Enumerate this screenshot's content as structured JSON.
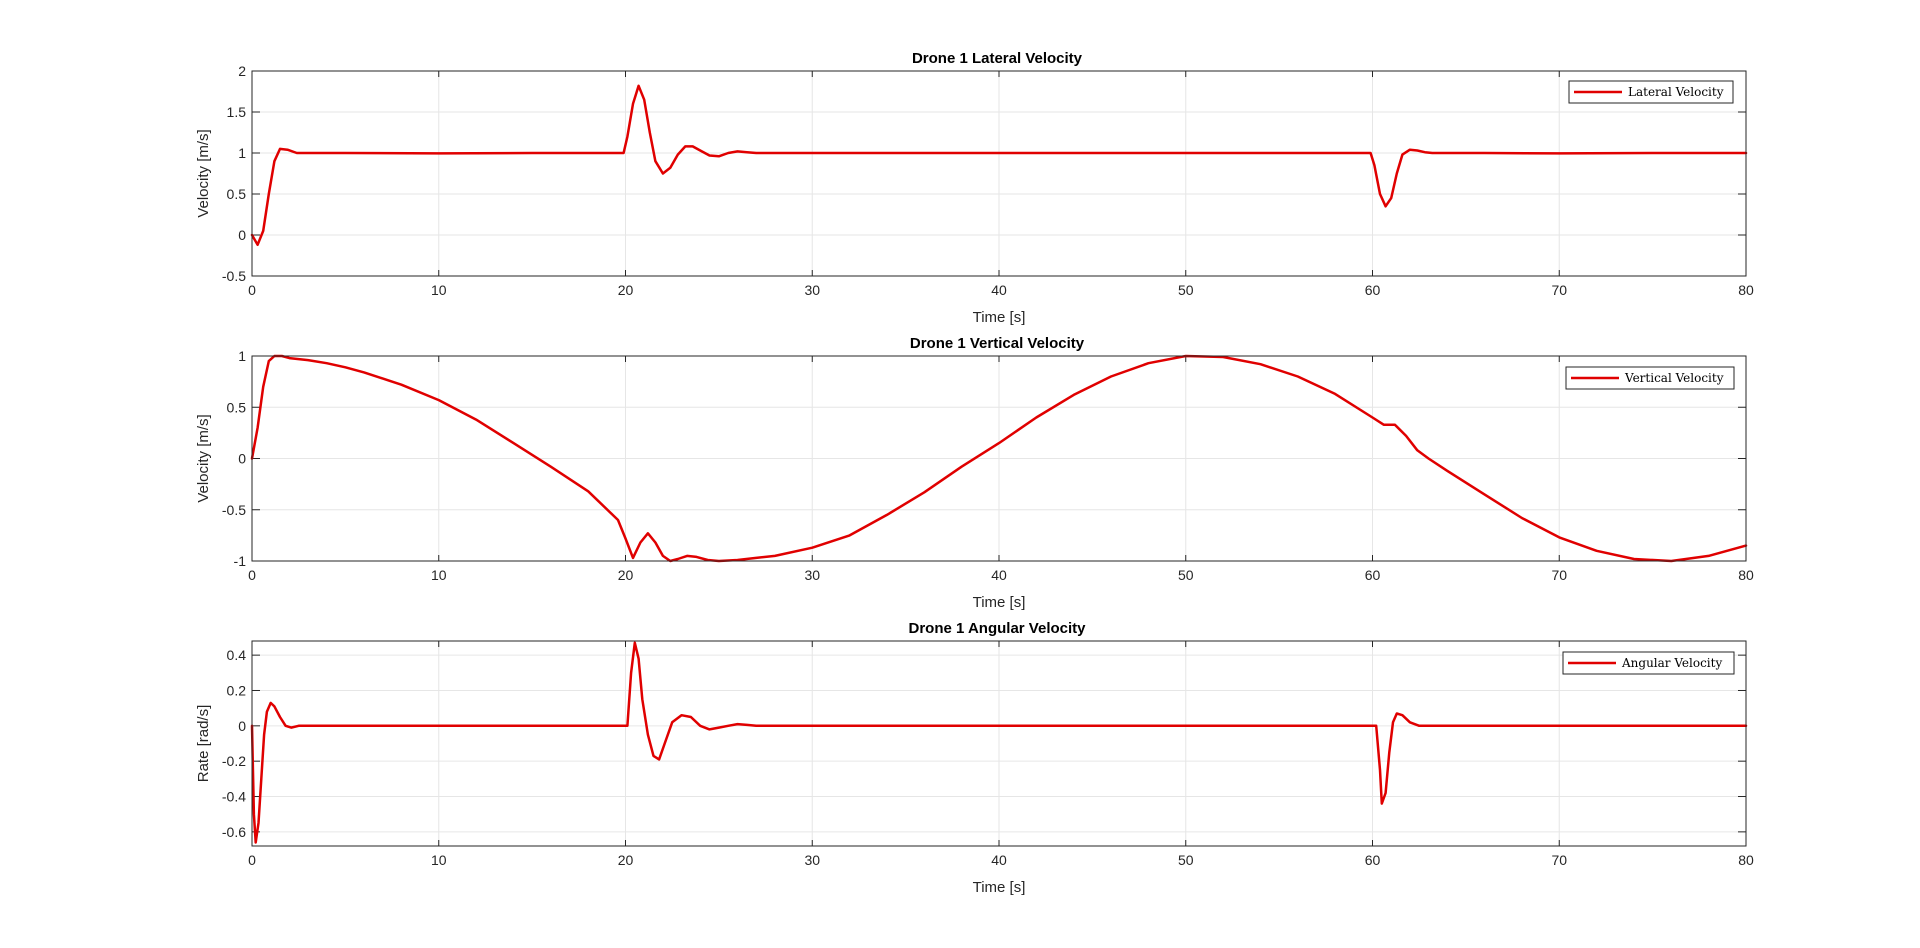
{
  "chart_data": [
    {
      "type": "line",
      "title": "Drone 1 Lateral Velocity",
      "xlabel": "Time [s]",
      "ylabel": "Velocity [m/s]",
      "xlim": [
        0,
        80
      ],
      "ylim": [
        -0.5,
        2
      ],
      "xticks": [
        "0",
        "10",
        "20",
        "30",
        "40",
        "50",
        "60",
        "70",
        "80"
      ],
      "yticks": [
        "-0.5",
        "0",
        "0.5",
        "1",
        "1.5",
        "2"
      ],
      "grid": true,
      "legend_position": "top-right",
      "series": [
        {
          "name": "Lateral Velocity",
          "color": "#e00000",
          "x": [
            0,
            0.3,
            0.6,
            0.9,
            1.2,
            1.5,
            1.9,
            2.4,
            3,
            5,
            10,
            15,
            19.9,
            20.1,
            20.4,
            20.7,
            21.0,
            21.3,
            21.6,
            22.0,
            22.4,
            22.8,
            23.2,
            23.6,
            24.0,
            24.5,
            25.0,
            25.5,
            26.0,
            26.5,
            27.0,
            28,
            30,
            40,
            50,
            59.9,
            60.1,
            60.4,
            60.7,
            61.0,
            61.3,
            61.6,
            62.0,
            62.4,
            62.8,
            63.2,
            64,
            66,
            70,
            75,
            80
          ],
          "y": [
            0,
            -0.12,
            0.05,
            0.5,
            0.9,
            1.05,
            1.04,
            1.0,
            1.0,
            1.0,
            0.995,
            1.0,
            1.0,
            1.2,
            1.6,
            1.82,
            1.65,
            1.25,
            0.9,
            0.75,
            0.82,
            0.98,
            1.08,
            1.08,
            1.03,
            0.97,
            0.96,
            1.0,
            1.02,
            1.01,
            1.0,
            1.0,
            1.0,
            1.0,
            1.0,
            1.0,
            0.85,
            0.5,
            0.35,
            0.45,
            0.75,
            0.98,
            1.04,
            1.03,
            1.01,
            1.0,
            1.0,
            1.0,
            0.995,
            1.0,
            1.0
          ]
        }
      ]
    },
    {
      "type": "line",
      "title": "Drone 1 Vertical Velocity",
      "xlabel": "Time [s]",
      "ylabel": "Velocity [m/s]",
      "xlim": [
        0,
        80
      ],
      "ylim": [
        -1,
        1
      ],
      "xticks": [
        "0",
        "10",
        "20",
        "30",
        "40",
        "50",
        "60",
        "70",
        "80"
      ],
      "yticks": [
        "-1",
        "-0.5",
        "0",
        "0.5",
        "1"
      ],
      "grid": true,
      "legend_position": "top-right",
      "series": [
        {
          "name": "Vertical Velocity",
          "color": "#e00000",
          "x": [
            0,
            0.3,
            0.6,
            0.9,
            1.2,
            1.6,
            2,
            3,
            4,
            5,
            6,
            8,
            10,
            12,
            14,
            16,
            18,
            19.6,
            20.0,
            20.4,
            20.8,
            21.2,
            21.6,
            22.0,
            22.4,
            22.8,
            23.3,
            23.8,
            24.4,
            25.0,
            26,
            27,
            28,
            30,
            32,
            34,
            36,
            38,
            40,
            42,
            44,
            46,
            48,
            50,
            52,
            54,
            56,
            58,
            60,
            60.6,
            61.2,
            61.8,
            62.4,
            63,
            64,
            66,
            68,
            70,
            72,
            74,
            76,
            78,
            80
          ],
          "y": [
            0,
            0.3,
            0.7,
            0.95,
            1.03,
            1.0,
            0.98,
            0.96,
            0.93,
            0.89,
            0.84,
            0.72,
            0.57,
            0.38,
            0.15,
            -0.08,
            -0.32,
            -0.6,
            -0.78,
            -0.97,
            -0.82,
            -0.73,
            -0.82,
            -0.95,
            -1.0,
            -0.98,
            -0.95,
            -0.96,
            -0.99,
            -1.0,
            -0.99,
            -0.97,
            -0.95,
            -0.87,
            -0.75,
            -0.55,
            -0.33,
            -0.08,
            0.15,
            0.4,
            0.62,
            0.8,
            0.93,
            1.0,
            0.99,
            0.92,
            0.8,
            0.63,
            0.4,
            0.33,
            0.33,
            0.22,
            0.08,
            0.0,
            -0.12,
            -0.35,
            -0.58,
            -0.77,
            -0.9,
            -0.98,
            -1.0,
            -0.95,
            -0.85
          ]
        }
      ]
    },
    {
      "type": "line",
      "title": "Drone 1 Angular Velocity",
      "xlabel": "Time [s]",
      "ylabel": "Rate [rad/s]",
      "xlim": [
        0,
        80
      ],
      "ylim": [
        -0.68,
        0.48
      ],
      "xticks": [
        "0",
        "10",
        "20",
        "30",
        "40",
        "50",
        "60",
        "70",
        "80"
      ],
      "yticks": [
        "-0.6",
        "-0.4",
        "-0.2",
        "0",
        "0.2",
        "0.4"
      ],
      "grid": true,
      "legend_position": "top-right",
      "series": [
        {
          "name": "Angular Velocity",
          "color": "#e00000",
          "x": [
            0,
            0.1,
            0.2,
            0.35,
            0.5,
            0.65,
            0.8,
            1.0,
            1.2,
            1.5,
            1.8,
            2.1,
            2.5,
            3,
            5,
            10,
            15,
            20.1,
            20.3,
            20.5,
            20.7,
            20.9,
            21.2,
            21.5,
            21.8,
            22.1,
            22.5,
            23.0,
            23.5,
            24.0,
            24.5,
            25.0,
            25.5,
            26.0,
            26.5,
            27.0,
            28,
            30,
            38,
            40,
            50,
            60.2,
            60.4,
            60.5,
            60.7,
            60.9,
            61.1,
            61.3,
            61.6,
            62.0,
            62.5,
            63,
            64,
            66,
            70,
            75,
            80
          ],
          "y": [
            0,
            -0.5,
            -0.66,
            -0.55,
            -0.3,
            -0.05,
            0.08,
            0.13,
            0.11,
            0.05,
            0.0,
            -0.01,
            0.0,
            0.0,
            0.0,
            0.0,
            0.0,
            0.0,
            0.3,
            0.47,
            0.38,
            0.15,
            -0.05,
            -0.17,
            -0.19,
            -0.1,
            0.02,
            0.06,
            0.05,
            0.0,
            -0.02,
            -0.01,
            0.0,
            0.01,
            0.005,
            0.0,
            0.0,
            0.0,
            0.0,
            0.0,
            0.0,
            0.0,
            -0.25,
            -0.44,
            -0.38,
            -0.15,
            0.02,
            0.07,
            0.06,
            0.02,
            0.0,
            0.0,
            0.0,
            0.0,
            0.0,
            0.0,
            0.0
          ]
        }
      ]
    }
  ]
}
